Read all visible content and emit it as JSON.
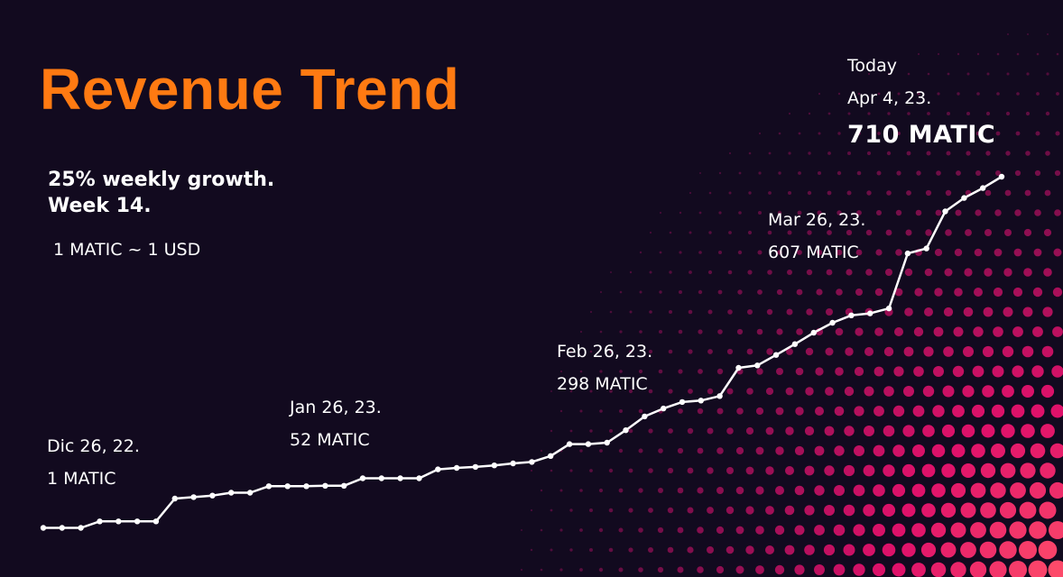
{
  "header": {
    "title": "Revenue Trend",
    "subtitle": "25% weekly growth. Week 14.",
    "rate_note": "1 MATIC ~ 1 USD"
  },
  "colors": {
    "background": "#120a1f",
    "title": "#ff7a12",
    "line": "#ffffff",
    "dot_gradient": [
      "#6b0f4f",
      "#e0116a",
      "#ff4d6a"
    ]
  },
  "annotations": [
    {
      "date": "Dic 26, 22.",
      "value": "1 MATIC"
    },
    {
      "date": "Jan 26, 23.",
      "value": "52 MATIC"
    },
    {
      "date": "Feb 26, 23.",
      "value": "298 MATIC"
    },
    {
      "date": "Mar 26, 23.",
      "value": "607 MATIC"
    },
    {
      "date": "Today",
      "date2": "Apr 4, 23.",
      "value": "710 MATIC"
    }
  ],
  "chart_data": {
    "type": "line",
    "title": "Revenue Trend",
    "ylabel": "",
    "xlabel": "",
    "unit": "MATIC",
    "grid": false,
    "ylim": [
      0,
      710
    ],
    "values": [
      1,
      1,
      1,
      14,
      14,
      14,
      14,
      60,
      63,
      66,
      72,
      72,
      85,
      85,
      85,
      86,
      86,
      101,
      101,
      101,
      101,
      119,
      122,
      124,
      127,
      131,
      134,
      146,
      170,
      170,
      173,
      198,
      226,
      242,
      255,
      258,
      267,
      324,
      329,
      350,
      372,
      395,
      415,
      430,
      434,
      444,
      555,
      565,
      640,
      667,
      687,
      710
    ]
  }
}
